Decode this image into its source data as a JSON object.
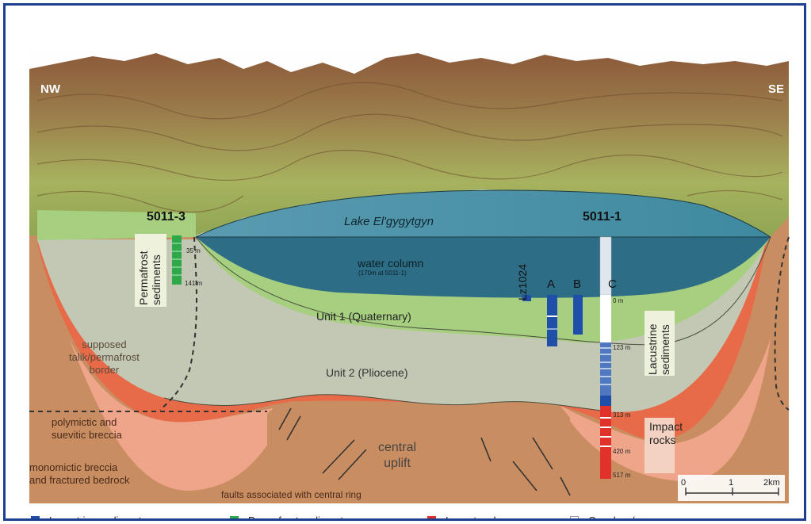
{
  "directions": {
    "left": "NW",
    "right": "SE"
  },
  "lake_name": "Lake El'gygytgyn",
  "cores": {
    "site_left": "5011-3",
    "site_right": "5011-1",
    "lz": "Lz1024",
    "hole_a": "A",
    "hole_b": "B",
    "hole_c": "C"
  },
  "units": {
    "water_column": "water column",
    "water_note": "(170m at 5011-1)",
    "unit1": "Unit 1 (Quaternary)",
    "unit2": "Unit 2 (Pliocene)",
    "central_uplift": "central\nuplift"
  },
  "depths": {
    "d35": "35 m",
    "d141": "141 m",
    "d0": "0 m",
    "d123": "123 m",
    "d313": "313 m",
    "d420": "420 m",
    "d517": "517 m"
  },
  "annotations": {
    "permafrost_box": "Permafrost\nsediments",
    "lacustrine_box": "Lacustrine\nsediments",
    "impact_box": "Impact\nrocks",
    "talik": "supposed\ntalik/permafrost\nborder",
    "polymictic": "polymictic and\nsuevitic breccia",
    "monomictic": "monomictic breccia\nand fractured bedrock",
    "faults": "faults associated with central ring"
  },
  "scale": {
    "zero": "0",
    "one": "1",
    "two": "2km"
  },
  "legend": [
    {
      "label": "Lacustrine sediments",
      "color": "#1f4fa8"
    },
    {
      "label": "Permafrost sediments",
      "color": "#2fa84a"
    },
    {
      "label": "Impact rock",
      "color": "#e0322b"
    },
    {
      "label": "Core loss/gap",
      "color": "#ffffff"
    }
  ],
  "colors": {
    "water": "#2e6d86",
    "unit1": "#a6cf80",
    "unit2": "#c3c8b4",
    "breccia_outer": "#e86b49",
    "breccia_inner": "#efa58a",
    "bedrock": "#c98d62"
  }
}
